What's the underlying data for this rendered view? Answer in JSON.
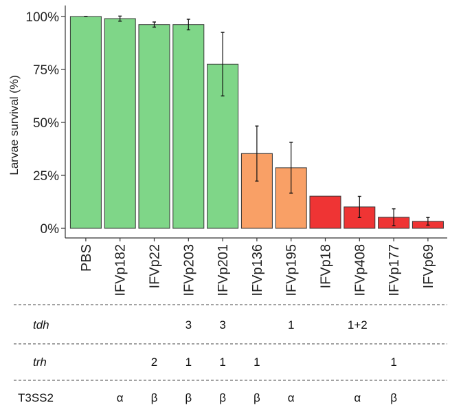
{
  "chart_data": {
    "type": "bar",
    "ylabel": "Larvae survival (%)",
    "ylim": [
      0,
      100
    ],
    "yticks": [
      0,
      25,
      50,
      75,
      100
    ],
    "ytick_labels": [
      "0%",
      "25%",
      "50%",
      "75%",
      "100%"
    ],
    "categories": [
      "PBS",
      "IFVp182",
      "IFVp22",
      "IFVp203",
      "IFVp201",
      "IFVp136",
      "IFVp195",
      "IFVp18",
      "IFVp408",
      "IFVp177",
      "IFVp69"
    ],
    "values": [
      100,
      99,
      96.2,
      96.2,
      77.5,
      35.3,
      28.6,
      15.2,
      10.1,
      5.2,
      3.3
    ],
    "error_low": [
      0,
      1.2,
      1.2,
      2.5,
      15,
      13,
      12,
      null,
      5,
      4,
      1.8
    ],
    "error_high": [
      0,
      1.2,
      1.2,
      2.5,
      15,
      13,
      12,
      null,
      5,
      4,
      1.8
    ],
    "bar_colors": [
      "#7fd688",
      "#7fd688",
      "#7fd688",
      "#7fd688",
      "#7fd688",
      "#f9a066",
      "#f9a066",
      "#ef3434",
      "#ef3434",
      "#ef3434",
      "#ef3434"
    ],
    "grid": false
  },
  "table": {
    "rows": [
      {
        "label": "tdh",
        "italic": true,
        "cells": [
          "",
          "",
          "",
          "3",
          "3",
          "",
          "1",
          "",
          "1+2",
          "",
          ""
        ]
      },
      {
        "label": "trh",
        "italic": true,
        "cells": [
          "",
          "",
          "2",
          "1",
          "1",
          "1",
          "",
          "",
          "",
          "1",
          ""
        ]
      },
      {
        "label": "T3SS2",
        "italic": false,
        "cells": [
          "",
          "α",
          "β",
          "β",
          "β",
          "β",
          "α",
          "",
          "α",
          "β",
          ""
        ]
      }
    ]
  }
}
